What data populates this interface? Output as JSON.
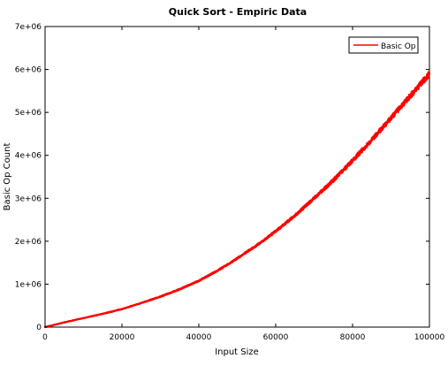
{
  "chart_data": {
    "type": "line",
    "title": "Quick Sort - Empiric Data",
    "xlabel": "Input Size",
    "ylabel": "Basic Op Count",
    "xlim": [
      0,
      100000
    ],
    "ylim": [
      0,
      7000000
    ],
    "x_ticks": [
      0,
      20000,
      40000,
      60000,
      80000,
      100000
    ],
    "x_tick_labels": [
      "0",
      "20000",
      "40000",
      "60000",
      "80000",
      "100000"
    ],
    "y_ticks": [
      0,
      1000000,
      2000000,
      3000000,
      4000000,
      5000000,
      6000000,
      7000000
    ],
    "y_tick_labels": [
      "0",
      "1e+06",
      "2e+06",
      "3e+06",
      "4e+06",
      "5e+06",
      "6e+06",
      "7e+06"
    ],
    "grid": false,
    "legend_position": "top-right",
    "series": [
      {
        "name": "Basic Op",
        "color": "#ff0000",
        "x": [
          0,
          5000,
          10000,
          15000,
          20000,
          25000,
          30000,
          35000,
          40000,
          45000,
          50000,
          55000,
          60000,
          65000,
          70000,
          75000,
          80000,
          85000,
          90000,
          95000,
          100000
        ],
        "values": [
          0,
          110000,
          210000,
          310000,
          420000,
          560000,
          710000,
          880000,
          1080000,
          1320000,
          1600000,
          1900000,
          2230000,
          2600000,
          3000000,
          3420000,
          3880000,
          4360000,
          4870000,
          5380000,
          5900000
        ]
      }
    ]
  }
}
